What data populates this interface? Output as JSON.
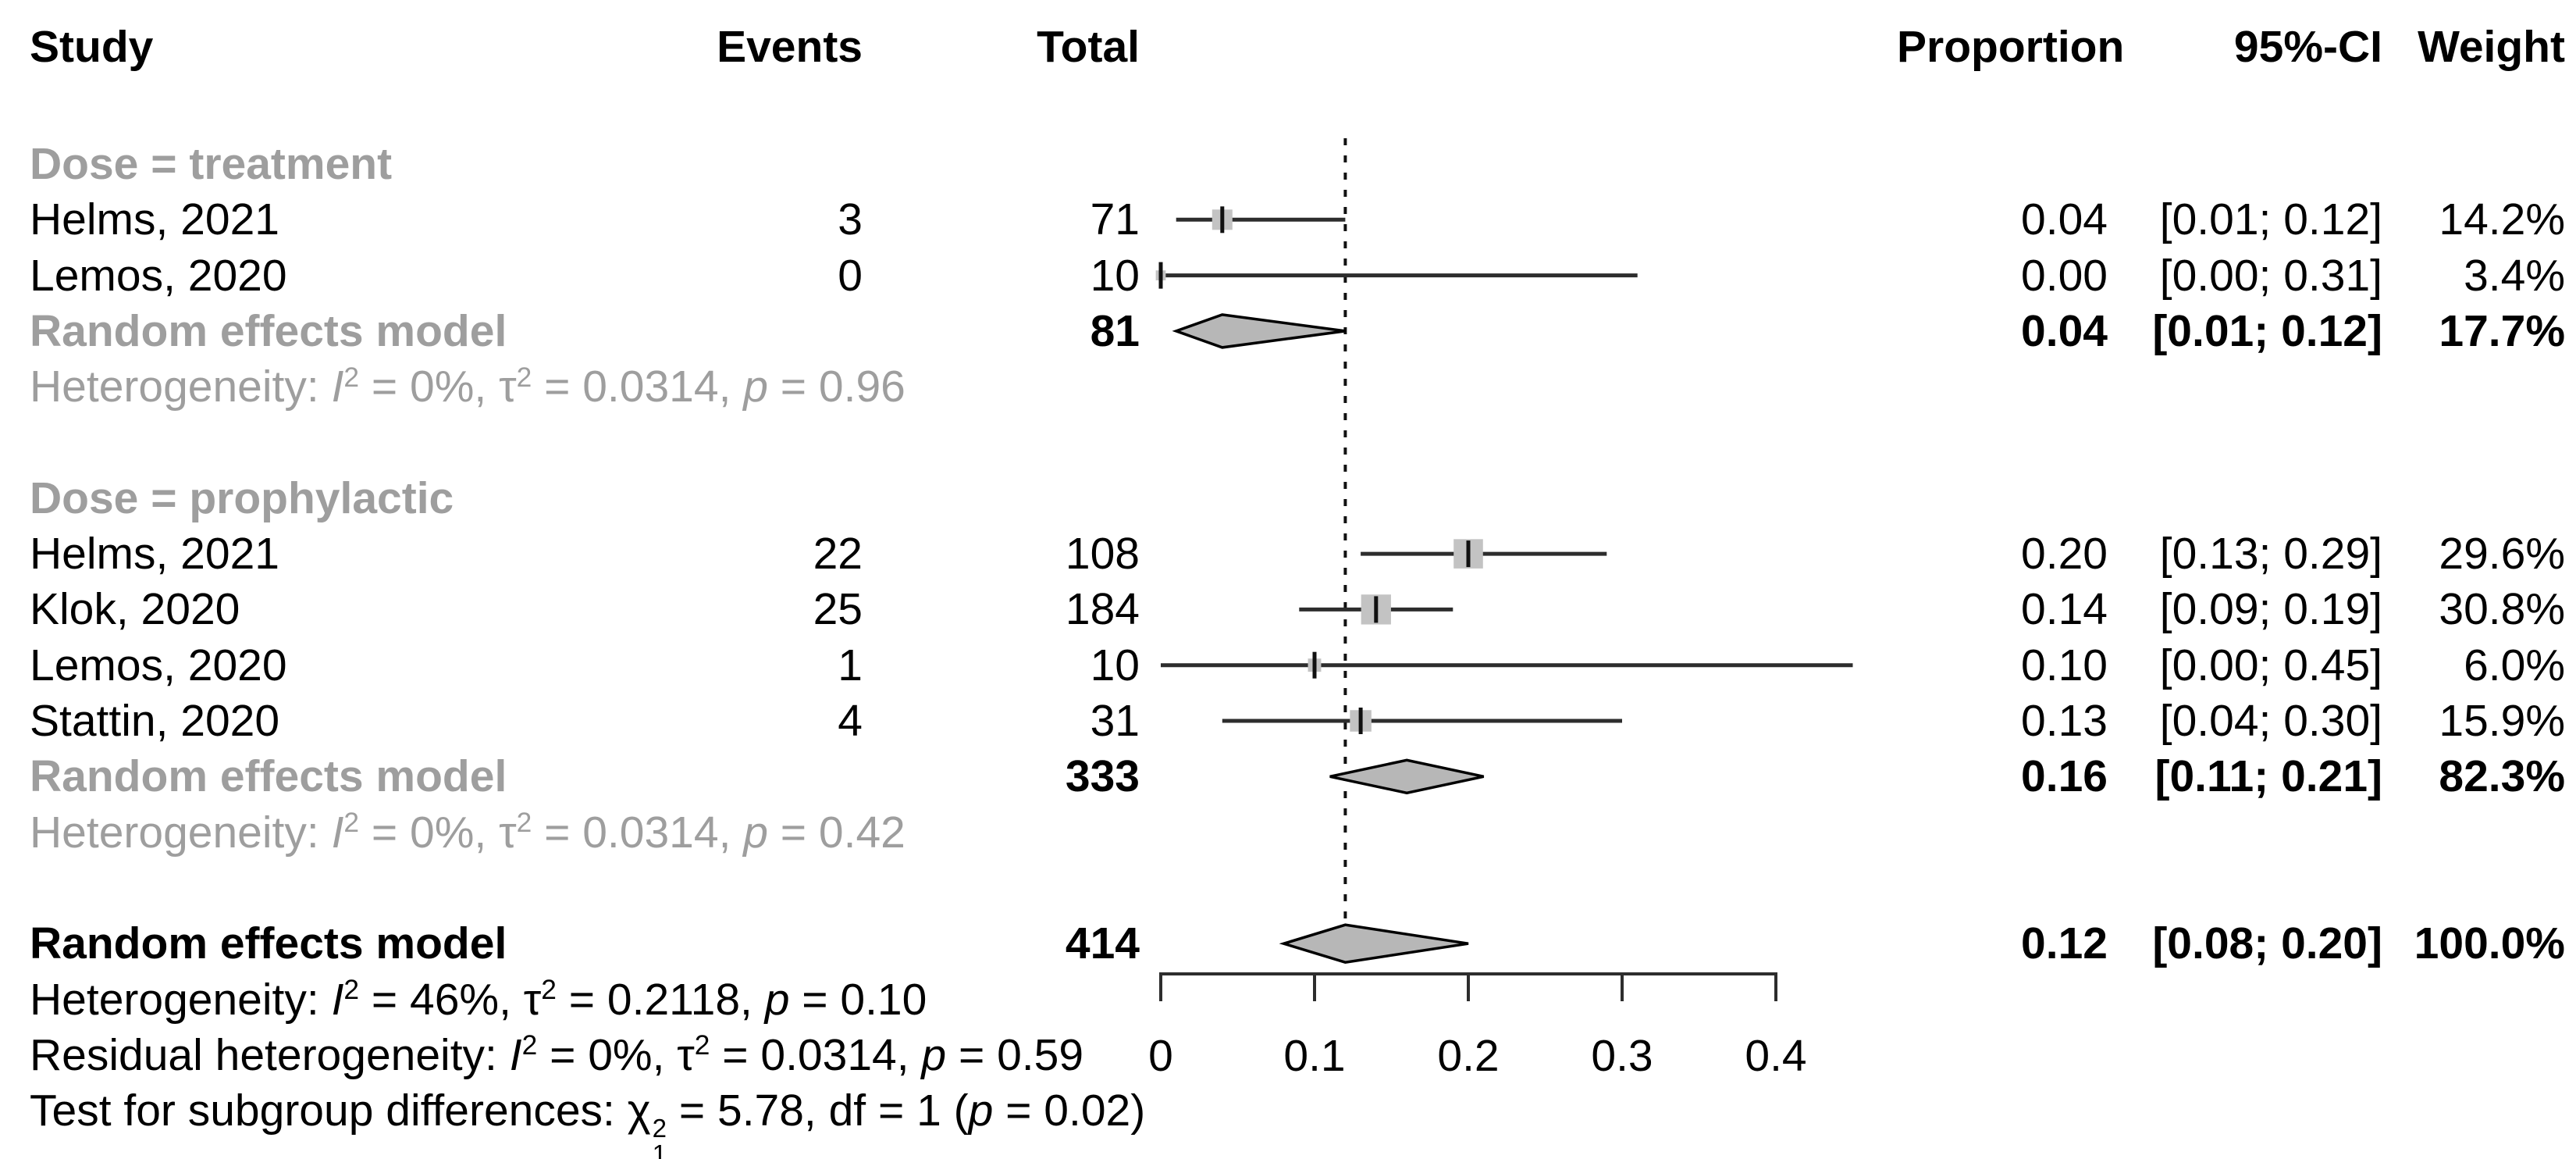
{
  "columns": {
    "study": "Study",
    "events": "Events",
    "total": "Total",
    "proportion": "Proportion",
    "ci": "95%-CI",
    "weight": "Weight"
  },
  "colors": {
    "text_black": "#000000",
    "text_gray": "#9e9e9e",
    "ci_line": "#2d2d2d",
    "square_fill": "#c3c3c3",
    "square_tick": "#111111",
    "diamond_fill": "#b7b7b7",
    "diamond_stroke": "#000000",
    "axis": "#2d2d2d",
    "reference_line": "#111111"
  },
  "chart_data": {
    "type": "forest",
    "effect_measure": "Proportion",
    "axis": {
      "min": 0,
      "max": 0.4,
      "ticks": [
        0,
        0.1,
        0.2,
        0.3,
        0.4
      ],
      "tick_labels": [
        "0",
        "0.1",
        "0.2",
        "0.3",
        "0.4"
      ]
    },
    "reference_line_value": 0.12,
    "rows": [
      {
        "type": "group",
        "study": "Dose = treatment"
      },
      {
        "type": "study",
        "study": "Helms, 2021",
        "events": "3",
        "total": "71",
        "est": 0.04,
        "lo": 0.01,
        "hi": 0.12,
        "weight": 14.2,
        "prop": "0.04",
        "ci": "[0.01; 0.12]",
        "wt": "14.2%"
      },
      {
        "type": "study",
        "study": "Lemos, 2020",
        "events": "0",
        "total": "10",
        "est": 0.0,
        "lo": 0.0,
        "hi": 0.31,
        "weight": 3.4,
        "prop": "0.00",
        "ci": "[0.00; 0.31]",
        "wt": "3.4%"
      },
      {
        "type": "summary",
        "study": "Random effects model",
        "total": "81",
        "est": 0.04,
        "lo": 0.01,
        "hi": 0.12,
        "prop": "0.04",
        "ci": "[0.01; 0.12]",
        "wt": "17.7%",
        "gray": true,
        "overall": false
      },
      {
        "type": "stat",
        "gray": true,
        "segs": [
          {
            "t": "Heterogeneity: "
          },
          {
            "i": "I"
          },
          {
            "sup": "2"
          },
          {
            "t": " = 0%, τ"
          },
          {
            "sup": "2"
          },
          {
            "t": " = 0.0314, "
          },
          {
            "i": "p"
          },
          {
            "t": " = 0.96"
          }
        ]
      },
      {
        "type": "spacer"
      },
      {
        "type": "group",
        "study": "Dose = prophylactic"
      },
      {
        "type": "study",
        "study": "Helms, 2021",
        "events": "22",
        "total": "108",
        "est": 0.2,
        "lo": 0.13,
        "hi": 0.29,
        "weight": 29.6,
        "prop": "0.20",
        "ci": "[0.13; 0.29]",
        "wt": "29.6%"
      },
      {
        "type": "study",
        "study": "Klok, 2020",
        "events": "25",
        "total": "184",
        "est": 0.14,
        "lo": 0.09,
        "hi": 0.19,
        "weight": 30.8,
        "prop": "0.14",
        "ci": "[0.09; 0.19]",
        "wt": "30.8%"
      },
      {
        "type": "study",
        "study": "Lemos, 2020",
        "events": "1",
        "total": "10",
        "est": 0.1,
        "lo": 0.0,
        "hi": 0.45,
        "weight": 6.0,
        "prop": "0.10",
        "ci": "[0.00; 0.45]",
        "wt": "6.0%"
      },
      {
        "type": "study",
        "study": "Stattin, 2020",
        "events": "4",
        "total": "31",
        "est": 0.13,
        "lo": 0.04,
        "hi": 0.3,
        "weight": 15.9,
        "prop": "0.13",
        "ci": "[0.04; 0.30]",
        "wt": "15.9%"
      },
      {
        "type": "summary",
        "study": "Random effects model",
        "total": "333",
        "est": 0.16,
        "lo": 0.11,
        "hi": 0.21,
        "prop": "0.16",
        "ci": "[0.11; 0.21]",
        "wt": "82.3%",
        "gray": true,
        "overall": false
      },
      {
        "type": "stat",
        "gray": true,
        "segs": [
          {
            "t": "Heterogeneity: "
          },
          {
            "i": "I"
          },
          {
            "sup": "2"
          },
          {
            "t": " = 0%, τ"
          },
          {
            "sup": "2"
          },
          {
            "t": " = 0.0314, "
          },
          {
            "i": "p"
          },
          {
            "t": " = 0.42"
          }
        ]
      },
      {
        "type": "spacer"
      },
      {
        "type": "summary",
        "study": "Random effects model",
        "total": "414",
        "est": 0.12,
        "lo": 0.08,
        "hi": 0.2,
        "prop": "0.12",
        "ci": "[0.08; 0.20]",
        "wt": "100.0%",
        "gray": false,
        "overall": true
      },
      {
        "type": "stat",
        "gray": false,
        "segs": [
          {
            "t": "Heterogeneity: "
          },
          {
            "i": "I"
          },
          {
            "sup": "2"
          },
          {
            "t": " = 46%, τ"
          },
          {
            "sup": "2"
          },
          {
            "t": " = 0.2118, "
          },
          {
            "i": "p"
          },
          {
            "t": " = 0.10"
          }
        ]
      },
      {
        "type": "stat",
        "gray": false,
        "segs": [
          {
            "t": "Residual heterogeneity: "
          },
          {
            "i": "I"
          },
          {
            "sup": "2"
          },
          {
            "t": " = 0%, τ"
          },
          {
            "sup": "2"
          },
          {
            "t": " = 0.0314, "
          },
          {
            "i": "p"
          },
          {
            "t": " = 0.59"
          }
        ]
      },
      {
        "type": "stat",
        "gray": false,
        "segs": [
          {
            "t": "Test for subgroup differences: χ"
          },
          {
            "ss": {
              "sup": "2",
              "sub": "1"
            }
          },
          {
            "t": " = 5.78, df = 1 ("
          },
          {
            "i": "p"
          },
          {
            "t": " = 0.02)"
          }
        ]
      }
    ]
  }
}
